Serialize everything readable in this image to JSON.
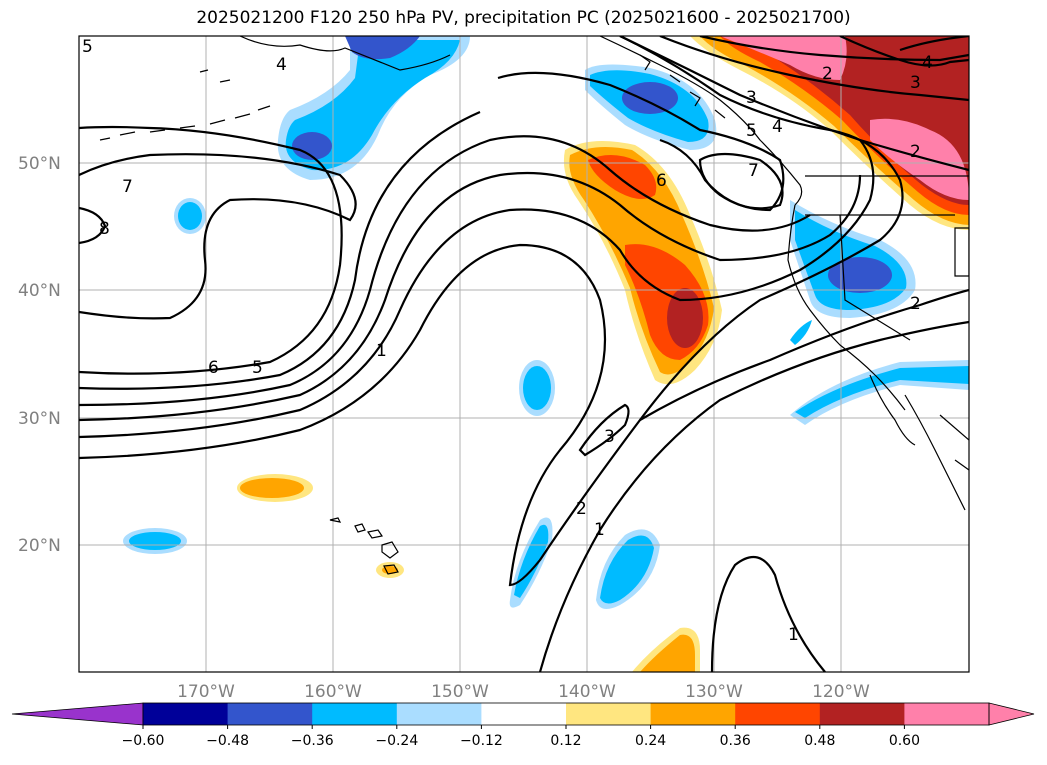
{
  "title": "2025021200 F120 250 hPa PV, precipitation PC (2025021600 - 2025021700)",
  "lat_labels": [
    "50°N",
    "40°N",
    "30°N",
    "20°N"
  ],
  "lon_labels": [
    "170°W",
    "160°W",
    "150°W",
    "140°W",
    "130°W",
    "120°W"
  ],
  "contour_labels": [
    "5",
    "4",
    "7",
    "8",
    "6",
    "5",
    "1",
    "3",
    "2",
    "1",
    "6",
    "7",
    "5",
    "4",
    "3",
    "2",
    "4",
    "3",
    "2",
    "2",
    "1"
  ],
  "colorbar": {
    "ticks": [
      "−0.60",
      "−0.48",
      "−0.36",
      "−0.24",
      "−0.12",
      "0.12",
      "0.24",
      "0.36",
      "0.48",
      "0.60"
    ],
    "colors": [
      "#9933cc",
      "#000099",
      "#3355cc",
      "#00bbff",
      "#aaddff",
      "#ffffff",
      "#ffe680",
      "#ffa500",
      "#ff4500",
      "#b22222",
      "#ff80aa",
      "#ff80aa"
    ]
  },
  "colors": {
    "light_blue": "#aaddff",
    "cyan": "#00bbff",
    "mid_blue": "#3355cc",
    "yellow": "#ffe680",
    "orange": "#ffa500",
    "orange_red": "#ff4500",
    "dark_red": "#b22222",
    "pink": "#ff80aa"
  }
}
